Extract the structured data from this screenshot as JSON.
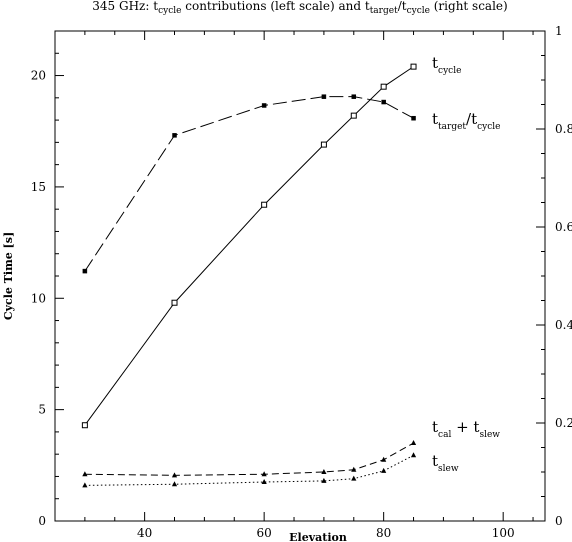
{
  "chart_data": {
    "type": "line",
    "title": {
      "prefix": "345 GHz: t",
      "sub1": "cycle",
      "mid1": " contributions (left scale) and t",
      "sub2": "target",
      "mid2": "/t",
      "sub3": "cycle",
      "suffix": " (right scale)"
    },
    "xlabel": "Elevation",
    "ylabel": "Cycle Time [s]",
    "xlim": [
      25,
      107
    ],
    "ylim": [
      0,
      22
    ],
    "y2lim": [
      0,
      1
    ],
    "xticks": [
      40,
      60,
      80,
      100
    ],
    "yticks": [
      0,
      5,
      10,
      15,
      20
    ],
    "y2ticks": [
      0,
      0.2,
      0.4,
      0.6,
      0.8,
      1
    ],
    "y2ticklabels": [
      "0",
      "0.2",
      "0.4",
      "0.6",
      "0.8",
      "1"
    ],
    "series": [
      {
        "name": "t_cycle",
        "label_main": "t",
        "label_sub": "cycle",
        "axis": "left",
        "line": "solid",
        "marker": "open-square",
        "x": [
          30,
          45,
          60,
          70,
          75,
          80,
          85
        ],
        "y": [
          4.3,
          9.8,
          14.2,
          16.9,
          18.2,
          19.5,
          20.4
        ]
      },
      {
        "name": "t_target/t_cycle",
        "label_main": "t",
        "label_sub": "target",
        "label_mid": "/t",
        "label_sub2": "cycle",
        "axis": "right",
        "line": "long-dash",
        "marker": "filled-square",
        "x": [
          30,
          45,
          60,
          70,
          75,
          80,
          85
        ],
        "y": [
          0.51,
          0.787,
          0.848,
          0.866,
          0.866,
          0.855,
          0.822
        ]
      },
      {
        "name": "t_cal + t_slew",
        "label_main": "t",
        "label_sub": "cal",
        "label_mid": " + t",
        "label_sub2": "slew",
        "axis": "left",
        "line": "dashed",
        "marker": "filled-triangle",
        "x": [
          30,
          45,
          60,
          70,
          75,
          80,
          85
        ],
        "y": [
          2.1,
          2.05,
          2.1,
          2.2,
          2.3,
          2.75,
          3.5
        ]
      },
      {
        "name": "t_slew",
        "label_main": "t",
        "label_sub": "slew",
        "axis": "left",
        "line": "dotted",
        "marker": "filled-triangle",
        "x": [
          30,
          45,
          60,
          70,
          75,
          80,
          85
        ],
        "y": [
          1.6,
          1.65,
          1.75,
          1.8,
          1.9,
          2.25,
          2.95
        ]
      }
    ]
  }
}
